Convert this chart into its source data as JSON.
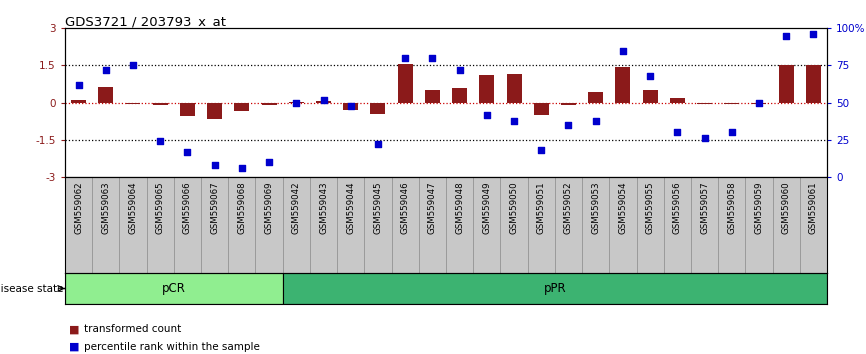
{
  "title": "GDS3721 / 203793_x_at",
  "samples": [
    "GSM559062",
    "GSM559063",
    "GSM559064",
    "GSM559065",
    "GSM559066",
    "GSM559067",
    "GSM559068",
    "GSM559069",
    "GSM559042",
    "GSM559043",
    "GSM559044",
    "GSM559045",
    "GSM559046",
    "GSM559047",
    "GSM559048",
    "GSM559049",
    "GSM559050",
    "GSM559051",
    "GSM559052",
    "GSM559053",
    "GSM559054",
    "GSM559055",
    "GSM559056",
    "GSM559057",
    "GSM559058",
    "GSM559059",
    "GSM559060",
    "GSM559061"
  ],
  "bar_values": [
    0.12,
    0.65,
    -0.05,
    -0.1,
    -0.55,
    -0.65,
    -0.35,
    -0.08,
    0.02,
    0.05,
    -0.3,
    -0.45,
    1.58,
    0.5,
    0.6,
    1.1,
    1.15,
    -0.5,
    -0.08,
    0.45,
    1.45,
    0.5,
    0.18,
    -0.05,
    -0.07,
    -0.05,
    1.52,
    1.52
  ],
  "dot_values": [
    62,
    72,
    75,
    24,
    17,
    8,
    6,
    10,
    50,
    52,
    48,
    22,
    80,
    80,
    72,
    42,
    38,
    18,
    35,
    38,
    85,
    68,
    30,
    26,
    30,
    50,
    95,
    96
  ],
  "pCR_count": 8,
  "pPR_count": 20,
  "ylim": [
    -3,
    3
  ],
  "yticks_left": [
    -3,
    -1.5,
    0,
    1.5,
    3
  ],
  "yticks_right": [
    0,
    25,
    50,
    75,
    100
  ],
  "bar_color": "#8B1A1A",
  "dot_color": "#0000CD",
  "dotted_line_values": [
    1.5,
    -1.5
  ],
  "zero_line_color": "#CC0000",
  "pCR_color": "#90EE90",
  "pPR_color": "#3CB371",
  "label_bar": "transformed count",
  "label_dot": "percentile rank within the sample",
  "disease_state_label": "disease state",
  "sample_bg_color": "#C8C8C8",
  "sample_border_color": "#888888"
}
